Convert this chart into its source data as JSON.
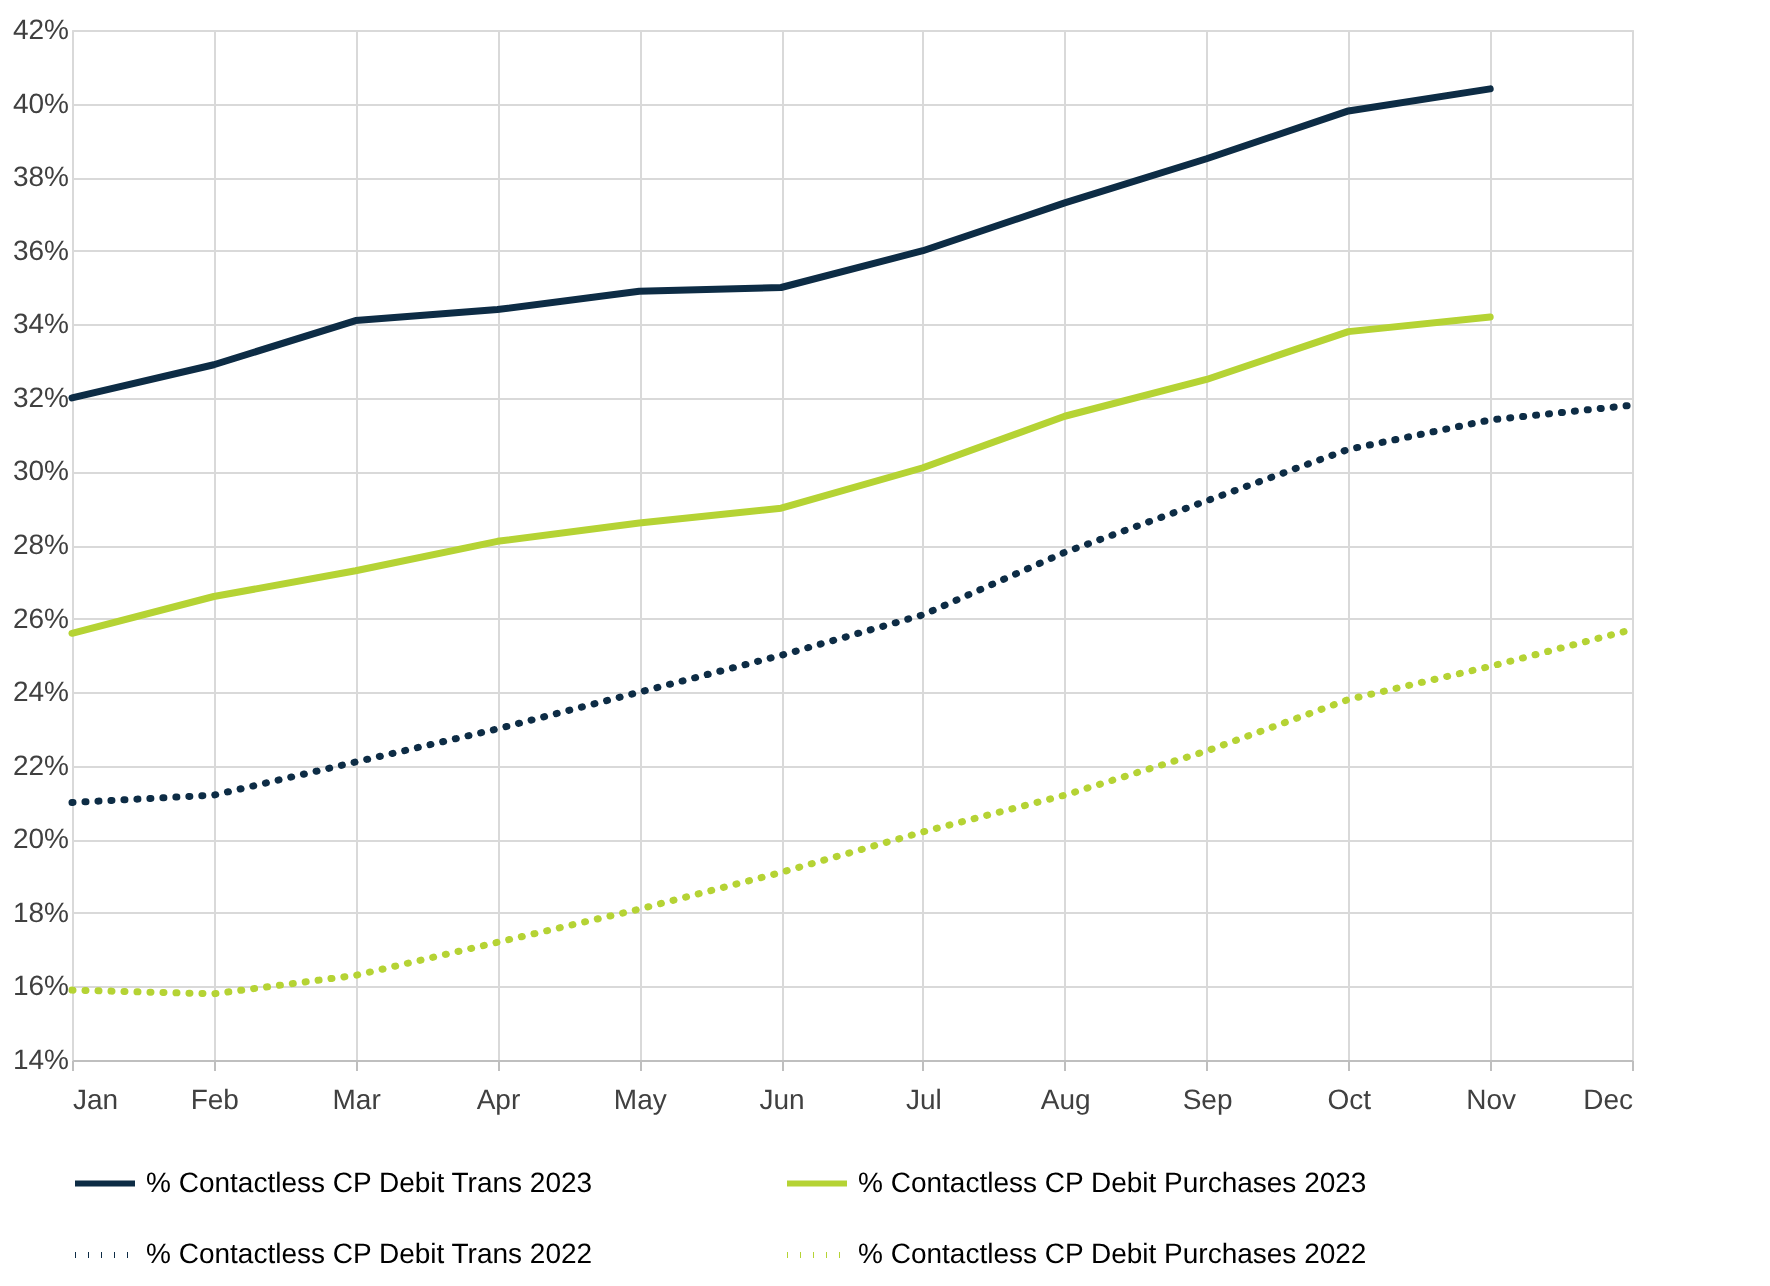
{
  "chart_data": {
    "type": "line",
    "categories": [
      "Jan",
      "Feb",
      "Mar",
      "Apr",
      "May",
      "Jun",
      "Jul",
      "Aug",
      "Sep",
      "Oct",
      "Nov",
      "Dec"
    ],
    "series": [
      {
        "name": "% Contactless CP Debit Trans 2023",
        "color": "#0d2c45",
        "line_style": "solid",
        "values": [
          32.0,
          32.9,
          34.1,
          34.4,
          34.9,
          35.0,
          36.0,
          37.3,
          38.5,
          39.8,
          40.4,
          null
        ]
      },
      {
        "name": "% Contactless CP Debit Purchases 2023",
        "color": "#b5d334",
        "line_style": "solid",
        "values": [
          25.6,
          26.6,
          27.3,
          28.1,
          28.6,
          29.0,
          30.1,
          31.5,
          32.5,
          33.8,
          34.2,
          null
        ]
      },
      {
        "name": "% Contactless CP Debit Trans 2022",
        "color": "#0d2c45",
        "line_style": "dotted",
        "values": [
          21.0,
          21.2,
          22.1,
          23.0,
          24.0,
          25.0,
          26.1,
          27.8,
          29.2,
          30.6,
          31.4,
          31.8
        ]
      },
      {
        "name": "% Contactless CP Debit Purchases 2022",
        "color": "#b5d334",
        "line_style": "dotted",
        "values": [
          15.9,
          15.8,
          16.3,
          17.2,
          18.1,
          19.1,
          20.2,
          21.2,
          22.4,
          23.8,
          24.7,
          25.7
        ]
      }
    ],
    "ylim": [
      14,
      42
    ],
    "yticks": [
      {
        "value": 14,
        "label": "14%"
      },
      {
        "value": 16,
        "label": "16%"
      },
      {
        "value": 18,
        "label": "18%"
      },
      {
        "value": 20,
        "label": "20%"
      },
      {
        "value": 22,
        "label": "22%"
      },
      {
        "value": 24,
        "label": "24%"
      },
      {
        "value": 26,
        "label": "26%"
      },
      {
        "value": 28,
        "label": "28%"
      },
      {
        "value": 30,
        "label": "30%"
      },
      {
        "value": 32,
        "label": "32%"
      },
      {
        "value": 34,
        "label": "34%"
      },
      {
        "value": 36,
        "label": "36%"
      },
      {
        "value": 38,
        "label": "38%"
      },
      {
        "value": 40,
        "label": "40%"
      },
      {
        "value": 42,
        "label": "42%"
      }
    ],
    "grid": true,
    "legend": "bottom",
    "marker": "none"
  }
}
